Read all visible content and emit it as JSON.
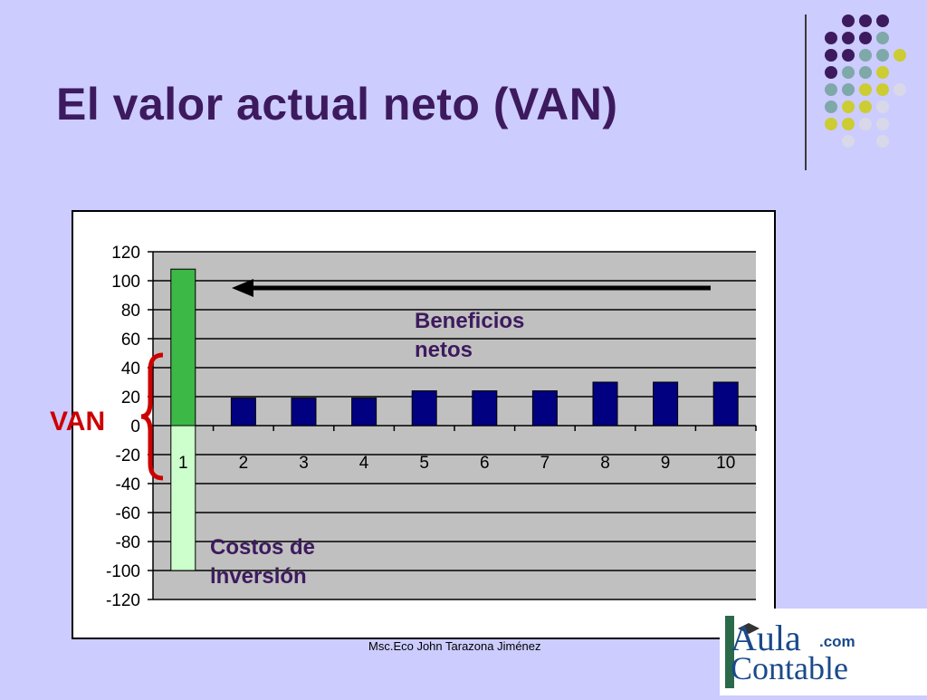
{
  "slide": {
    "title": "El valor actual neto (VAN)",
    "footer": "Msc.Eco John Tarazona Jiménez",
    "logo": {
      "line1": "Aula",
      "line2": "Contable",
      "suffix": ".com"
    }
  },
  "colors": {
    "background": "#ccccff",
    "title": "#3d1a5e",
    "plot_area": "#c0c0c0",
    "bar": "#000080",
    "benefit_bar_year1": "#3cb846",
    "cost_bar": "#ccffcc",
    "annotation_text": "#3d1a5e",
    "van_text": "#cc0000",
    "brace": "#cc0000",
    "arrow": "#000000",
    "dot_purple": "#3d1a5e",
    "dot_teal": "#7fa8a8",
    "dot_yellow": "#cccc33",
    "dot_gray": "#d8d8e8"
  },
  "chart_data": {
    "type": "bar",
    "categories": [
      "1",
      "2",
      "3",
      "4",
      "5",
      "6",
      "7",
      "8",
      "9",
      "10"
    ],
    "series": [
      {
        "name": "",
        "values": [
          108,
          19,
          19,
          19,
          24,
          24,
          24,
          30,
          30,
          30
        ]
      },
      {
        "name": "",
        "values": [
          -100,
          0,
          0,
          0,
          0,
          0,
          0,
          0,
          0,
          0
        ]
      }
    ],
    "yticks": [
      "120",
      "100",
      "80",
      "60",
      "40",
      "20",
      "0",
      "-20",
      "-40",
      "-60",
      "-80",
      "-100",
      "-120"
    ],
    "ylim": [
      -120,
      120
    ],
    "ystep": 20,
    "grid": true,
    "annotations": [
      {
        "text": "Beneficios netos",
        "lines": [
          "Beneficios",
          "netos"
        ]
      },
      {
        "text": "Costos de inversión",
        "lines": [
          "Costos de",
          "inversión"
        ]
      },
      {
        "text": "VAN"
      }
    ]
  }
}
